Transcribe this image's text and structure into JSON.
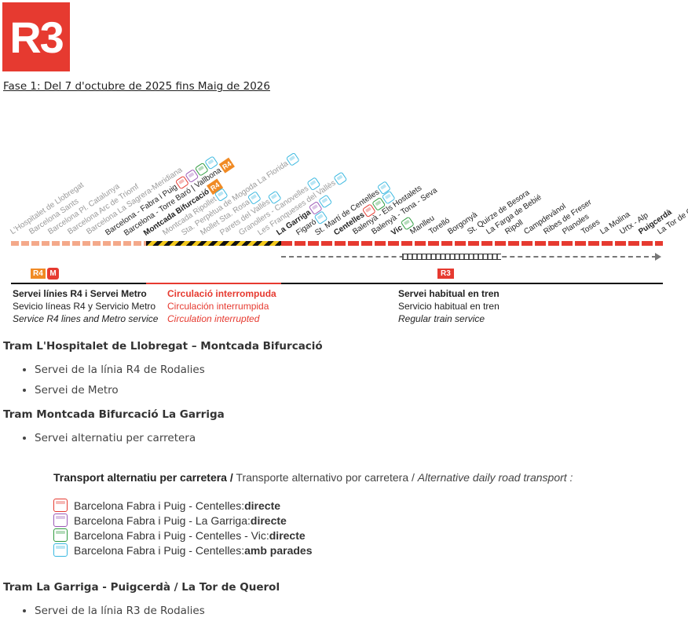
{
  "logo": {
    "text": "R3",
    "color": "#e63a30"
  },
  "phase_title": "Fase 1: Del 7 d'octubre de 2025 fins Maig de 2026",
  "stations": [
    {
      "name": "L'Hospitalet de Llobregat",
      "bold": false,
      "color": "grey"
    },
    {
      "name": "Barcelona Sants",
      "bold": false,
      "color": "grey"
    },
    {
      "name": "Barcelona Pl. Catalunya",
      "bold": false,
      "color": "grey"
    },
    {
      "name": "Barcelona Arc de Triomf",
      "bold": false,
      "color": "grey"
    },
    {
      "name": "Barcelona La Sagrera-Meridiana",
      "bold": false,
      "color": "grey"
    },
    {
      "name": "Barcelona - Fabra i Puig",
      "bold": false,
      "color": "dark",
      "icons": [
        "red",
        "purple",
        "green",
        "cyan"
      ]
    },
    {
      "name": "Barcelona - Torre Baró | Vallbona",
      "bold": false,
      "color": "dark",
      "tag": "R4"
    },
    {
      "name": "Montcada Bifurcació",
      "bold": true,
      "color": "dark",
      "tag": "R4"
    },
    {
      "name": "Montcada Ripollet",
      "bold": false,
      "color": "grey",
      "icons": [
        "cyan"
      ]
    },
    {
      "name": "Sta. Perpètua de Mogoda La Florida",
      "bold": false,
      "color": "grey",
      "icons": [
        "cyan"
      ]
    },
    {
      "name": "Mollet Sta. Rosa",
      "bold": false,
      "color": "grey",
      "icons": [
        "cyan"
      ]
    },
    {
      "name": "Parets del Vallès",
      "bold": false,
      "color": "grey",
      "icons": [
        "cyan"
      ]
    },
    {
      "name": "Granollers - Canovelles",
      "bold": false,
      "color": "grey",
      "icons": [
        "cyan"
      ]
    },
    {
      "name": "Les Franqueses del Vallès",
      "bold": false,
      "color": "grey",
      "icons": [
        "cyan"
      ]
    },
    {
      "name": "La Garriga",
      "bold": true,
      "color": "dark",
      "icons": [
        "purple",
        "cyan"
      ]
    },
    {
      "name": "Figaró",
      "bold": false,
      "color": "dark",
      "icons": [
        "cyan"
      ]
    },
    {
      "name": "St. Martí de Centelles",
      "bold": false,
      "color": "dark",
      "icons": [
        "cyan"
      ]
    },
    {
      "name": "Centelles",
      "bold": true,
      "color": "dark",
      "icons": [
        "red",
        "green",
        "cyan"
      ]
    },
    {
      "name": "Balenyà - Els Hostalets",
      "bold": false,
      "color": "dark"
    },
    {
      "name": "Balenyà - Tona - Seva",
      "bold": false,
      "color": "dark"
    },
    {
      "name": "Vic",
      "bold": true,
      "color": "dark",
      "icons": [
        "green"
      ]
    },
    {
      "name": "Manlleu",
      "bold": false,
      "color": "dark"
    },
    {
      "name": "Torelló",
      "bold": false,
      "color": "dark"
    },
    {
      "name": "Borgonyà",
      "bold": false,
      "color": "dark"
    },
    {
      "name": "St. Quirze de Besora",
      "bold": false,
      "color": "dark"
    },
    {
      "name": "La Farga de Bebié",
      "bold": false,
      "color": "dark"
    },
    {
      "name": "Ripoll",
      "bold": false,
      "color": "dark"
    },
    {
      "name": "Campdevànol",
      "bold": false,
      "color": "dark"
    },
    {
      "name": "Ribes de Freser",
      "bold": false,
      "color": "dark"
    },
    {
      "name": "Planoles",
      "bold": false,
      "color": "dark"
    },
    {
      "name": "Toses",
      "bold": false,
      "color": "dark"
    },
    {
      "name": "La Molina",
      "bold": false,
      "color": "dark"
    },
    {
      "name": "Urtx - Alp",
      "bold": false,
      "color": "dark"
    },
    {
      "name": "Puigcerdà",
      "bold": true,
      "color": "dark"
    },
    {
      "name": "La Tor de Querol",
      "bold": false,
      "color": "dark"
    }
  ],
  "line_tags": {
    "r4": "R4",
    "metro": "M",
    "r3": "R3"
  },
  "services": {
    "left": {
      "ca": "Servei línies R4 i Servei Metro",
      "es": "Sevicio líneas R4 y Servicio Metro",
      "en": "Service R4 lines and Metro service"
    },
    "mid": {
      "ca": "Circulació interrompuda",
      "es": "Circulación interrumpida",
      "en": "Circulation interrupted"
    },
    "right": {
      "ca": "Servei habitual en tren",
      "es": "Servicio habitual en tren",
      "en": "Regular train service"
    }
  },
  "sections": [
    {
      "title": "Tram L'Hospitalet de Llobregat – Montcada Bifurcació",
      "items": [
        "Servei de la línia R4 de Rodalies",
        "Servei de Metro"
      ]
    },
    {
      "title": "Tram Montcada Bifurcació La Garriga",
      "items": [
        "Servei alternatiu per carretera"
      ]
    },
    {
      "title": "Tram La Garriga - Puigcerdà / La Tor de Querol",
      "items": [
        "Servei de la línia R3 de Rodalies"
      ]
    }
  ],
  "road_transport": {
    "title_ca": "Transport alternatiu per carretera /",
    "title_es": "Transporte alternativo por carretera",
    "title_en": "Alternative daily road transport :",
    "routes": [
      {
        "label": "Barcelona Fabra i Puig - Centelles: ",
        "mode": "directe",
        "color": "red"
      },
      {
        "label": "Barcelona Fabra i Puig - La Garriga: ",
        "mode": "directe",
        "color": "purple"
      },
      {
        "label": "Barcelona Fabra i Puig - Centelles - Vic: ",
        "mode": "directe",
        "color": "green"
      },
      {
        "label": "Barcelona Fabra i Puig - Centelles: ",
        "mode": "amb parades",
        "color": "cyan"
      }
    ]
  }
}
